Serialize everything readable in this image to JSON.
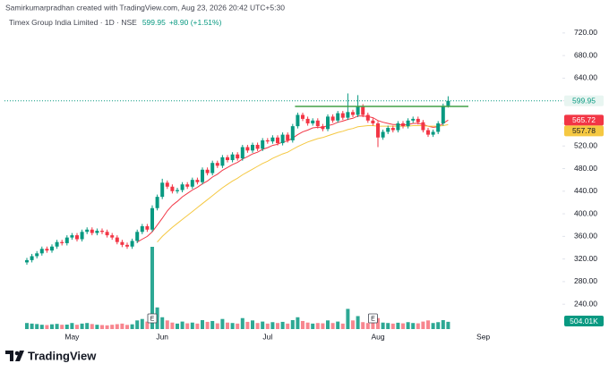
{
  "header": {
    "credit": "Samirkumarpradhan created with TradingView.com, Aug 23, 2026 20:42 UTC+5:30",
    "symbol": "Timex Group India Limited · 1D · NSE",
    "change": "+8.90 (+1.51%)"
  },
  "logo": "TradingView",
  "chart_data": {
    "type": "candlestick",
    "categories": [
      null,
      null,
      null,
      null,
      null,
      null,
      null,
      null,
      null,
      "May",
      null,
      null,
      null,
      null,
      null,
      null,
      null,
      null,
      null,
      null,
      null,
      null,
      null,
      null,
      null,
      null,
      null,
      "Jun",
      null,
      null,
      null,
      null,
      null,
      null,
      null,
      null,
      null,
      null,
      null,
      null,
      null,
      null,
      null,
      null,
      null,
      null,
      null,
      null,
      "Jul",
      null,
      null,
      null,
      null,
      null,
      null,
      null,
      null,
      null,
      null,
      null,
      null,
      null,
      null,
      null,
      null,
      null,
      null,
      null,
      null,
      null,
      "Aug",
      null,
      null,
      null,
      null,
      null,
      null,
      null,
      null,
      null,
      null,
      null,
      null,
      null,
      null,
      null,
      null,
      null,
      null,
      null,
      null,
      "Sep"
    ],
    "open": [
      314,
      318,
      325,
      330,
      338,
      335,
      342,
      350,
      348,
      358,
      362,
      355,
      368,
      372,
      366,
      370,
      368,
      362,
      358,
      350,
      345,
      342,
      352,
      368,
      378,
      372,
      410,
      430,
      455,
      448,
      440,
      442,
      452,
      448,
      460,
      456,
      478,
      472,
      490,
      485,
      500,
      495,
      505,
      498,
      518,
      512,
      522,
      515,
      530,
      528,
      535,
      525,
      540,
      530,
      555,
      575,
      568,
      560,
      565,
      555,
      550,
      572,
      565,
      578,
      570,
      580,
      575,
      590,
      575,
      565,
      560,
      535,
      545,
      552,
      548,
      560,
      555,
      565,
      568,
      562,
      548,
      540,
      545,
      560,
      591.05,
      null,
      null,
      null,
      null,
      null,
      null,
      null
    ],
    "high": [
      322,
      329,
      334,
      342,
      342,
      346,
      354,
      354,
      362,
      366,
      366,
      372,
      376,
      376,
      374,
      374,
      372,
      366,
      362,
      354,
      349,
      356,
      372,
      382,
      382,
      415,
      434,
      462,
      459,
      452,
      446,
      456,
      456,
      464,
      464,
      482,
      482,
      494,
      494,
      504,
      504,
      509,
      509,
      522,
      522,
      526,
      526,
      534,
      534,
      539,
      539,
      544,
      544,
      559,
      579,
      579,
      572,
      569,
      569,
      559,
      576,
      576,
      582,
      582,
      613,
      584,
      610,
      594,
      579,
      569,
      564,
      549,
      556,
      556,
      564,
      564,
      569,
      572,
      572,
      566,
      552,
      549,
      564,
      595,
      608,
      null,
      null,
      null,
      null,
      null,
      null,
      null
    ],
    "low": [
      310,
      314,
      321,
      326,
      331,
      331,
      338,
      344,
      344,
      354,
      351,
      351,
      364,
      362,
      362,
      364,
      358,
      354,
      346,
      341,
      338,
      338,
      348,
      364,
      368,
      368,
      406,
      426,
      444,
      436,
      436,
      438,
      444,
      444,
      452,
      452,
      468,
      468,
      481,
      481,
      491,
      491,
      494,
      494,
      508,
      508,
      511,
      511,
      524,
      524,
      521,
      521,
      526,
      526,
      551,
      564,
      556,
      556,
      551,
      546,
      546,
      561,
      561,
      566,
      566,
      571,
      571,
      571,
      561,
      556,
      518,
      531,
      541,
      544,
      544,
      551,
      551,
      561,
      558,
      544,
      536,
      536,
      541,
      556,
      588,
      null,
      null,
      null,
      null,
      null,
      null,
      null
    ],
    "close": [
      318,
      325,
      330,
      338,
      335,
      342,
      350,
      348,
      358,
      362,
      355,
      368,
      372,
      366,
      370,
      368,
      362,
      358,
      350,
      345,
      342,
      352,
      368,
      378,
      372,
      410,
      430,
      455,
      448,
      440,
      442,
      452,
      448,
      460,
      456,
      478,
      472,
      490,
      485,
      500,
      495,
      505,
      498,
      518,
      512,
      522,
      515,
      530,
      528,
      535,
      525,
      540,
      530,
      555,
      575,
      568,
      560,
      565,
      555,
      550,
      572,
      565,
      578,
      570,
      580,
      575,
      590,
      575,
      565,
      560,
      535,
      545,
      552,
      548,
      560,
      555,
      565,
      568,
      562,
      548,
      540,
      545,
      560,
      591.05,
      599.95,
      null,
      null,
      null,
      null,
      null,
      null,
      null
    ],
    "up_color": "#089981",
    "down_color": "#f23645",
    "moving_averages": [
      {
        "color": "#f23645",
        "values": [
          null,
          null,
          null,
          null,
          null,
          null,
          null,
          null,
          null,
          null,
          null,
          null,
          null,
          null,
          null,
          null,
          null,
          null,
          null,
          null,
          null,
          null,
          350,
          355,
          360,
          368,
          380,
          392,
          405,
          415,
          422,
          430,
          436,
          442,
          447,
          453,
          458,
          465,
          470,
          477,
          482,
          487,
          491,
          497,
          501,
          506,
          509,
          514,
          517,
          521,
          523,
          527,
          529,
          534,
          540,
          545,
          548,
          552,
          553,
          553,
          556,
          558,
          562,
          564,
          567,
          569,
          573,
          573,
          572,
          570,
          565,
          562,
          560,
          558,
          558,
          557,
          558,
          560,
          560,
          558,
          555,
          553,
          554,
          560,
          565.72,
          null,
          null,
          null,
          null,
          null,
          null,
          null
        ]
      },
      {
        "color": "#f5c842",
        "values": [
          null,
          null,
          null,
          null,
          null,
          null,
          null,
          null,
          null,
          null,
          null,
          null,
          null,
          null,
          null,
          null,
          null,
          null,
          null,
          null,
          null,
          null,
          null,
          null,
          null,
          null,
          350,
          360,
          368,
          376,
          383,
          390,
          397,
          404,
          411,
          418,
          425,
          432,
          439,
          446,
          452,
          458,
          463,
          469,
          474,
          479,
          484,
          489,
          493,
          498,
          502,
          506,
          509,
          514,
          519,
          523,
          527,
          530,
          533,
          535,
          538,
          541,
          544,
          546,
          549,
          551,
          554,
          555,
          556,
          556,
          555,
          555,
          555,
          555,
          555,
          555,
          555,
          556,
          556,
          556,
          555,
          555,
          555,
          556,
          557.78,
          null,
          null,
          null,
          null,
          null,
          null,
          null
        ]
      }
    ],
    "volume": {
      "values": [
        420,
        380,
        350,
        300,
        280,
        330,
        360,
        300,
        310,
        420,
        300,
        380,
        420,
        350,
        300,
        280,
        260,
        300,
        340,
        380,
        290,
        330,
        600,
        700,
        520,
        5700,
        1500,
        820,
        600,
        450,
        380,
        520,
        400,
        450,
        380,
        620,
        500,
        560,
        400,
        700,
        450,
        420,
        380,
        760,
        500,
        600,
        420,
        520,
        380,
        480,
        420,
        500,
        380,
        620,
        820,
        560,
        450,
        380,
        420,
        400,
        600,
        420,
        520,
        380,
        1400,
        600,
        900,
        480,
        420,
        560,
        760,
        450,
        420,
        380,
        440,
        400,
        480,
        420,
        400,
        520,
        600,
        420,
        480,
        620,
        504.01,
        null,
        null,
        null,
        null,
        null,
        null,
        null
      ],
      "last_label": "504.01K",
      "color": "#089981"
    },
    "events": [
      "E",
      "E"
    ],
    "resistance": 590,
    "ylim": [
      196,
      734
    ],
    "yticks": [
      240,
      280,
      320,
      360,
      400,
      440,
      480,
      520,
      560,
      600,
      640,
      680,
      720
    ],
    "ytick_labels": [
      "240.00",
      "280.00",
      "320.00",
      "360.00",
      "400.00",
      "440.00",
      "480.00",
      "520.00",
      "560.00",
      "600.00",
      "640.00",
      "680.00",
      "720.00"
    ],
    "grid": false
  }
}
